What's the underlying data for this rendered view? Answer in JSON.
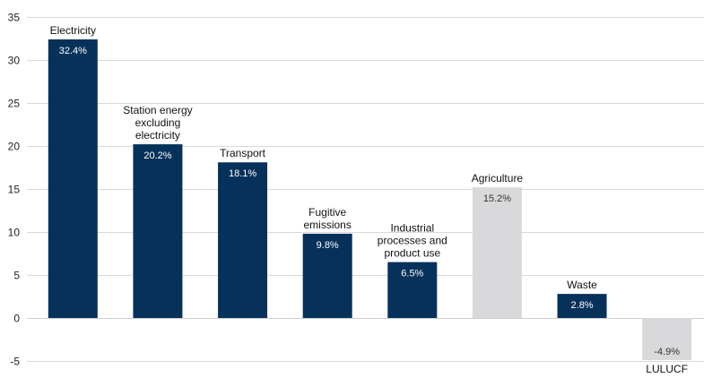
{
  "chart_data": {
    "type": "bar",
    "categories": [
      [
        "Electricity"
      ],
      [
        "Station energy",
        "excluding",
        "electricity"
      ],
      [
        "Transport"
      ],
      [
        "Fugitive",
        "emissions"
      ],
      [
        "Industrial",
        "processes and",
        "product use"
      ],
      [
        "Agriculture"
      ],
      [
        "Waste"
      ],
      [
        "LULUCF"
      ]
    ],
    "values": [
      32.4,
      20.2,
      18.1,
      9.8,
      6.5,
      15.2,
      2.8,
      -4.9
    ],
    "data_labels": [
      "32.4%",
      "20.2%",
      "18.1%",
      "9.8%",
      "6.5%",
      "15.2%",
      "2.8%",
      "-4.9%"
    ],
    "bar_colors": [
      "#06315a",
      "#06315a",
      "#06315a",
      "#06315a",
      "#06315a",
      "#d9d9db",
      "#06315a",
      "#d9d9db"
    ],
    "label_colors": [
      "#ffffff",
      "#ffffff",
      "#ffffff",
      "#ffffff",
      "#ffffff",
      "#333333",
      "#ffffff",
      "#333333"
    ],
    "yticks": [
      35,
      30,
      25,
      20,
      15,
      10,
      5,
      0,
      -5
    ],
    "ylim": [
      -5,
      35
    ],
    "grid": true,
    "legend": "none",
    "title": "",
    "xlabel": "",
    "ylabel": ""
  }
}
